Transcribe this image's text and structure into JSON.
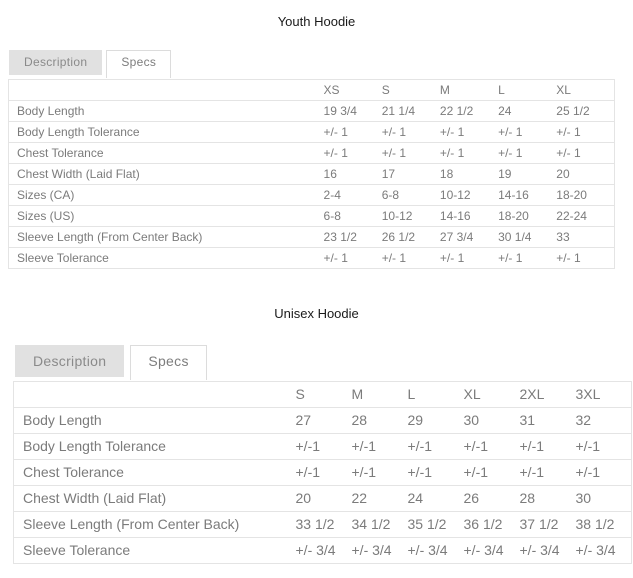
{
  "sections": [
    {
      "title": "Youth Hoodie",
      "tabs": [
        {
          "label": "Description",
          "active": false
        },
        {
          "label": "Specs",
          "active": true
        }
      ],
      "table": {
        "columns": [
          "XS",
          "S",
          "M",
          "L",
          "XL"
        ],
        "rows": [
          {
            "label": "Body Length",
            "values": [
              "19 3/4",
              "21 1/4",
              "22 1/2",
              "24",
              "25 1/2"
            ]
          },
          {
            "label": "Body Length Tolerance",
            "values": [
              "+/- 1",
              "+/- 1",
              "+/- 1",
              "+/- 1",
              "+/- 1"
            ]
          },
          {
            "label": "Chest Tolerance",
            "values": [
              "+/- 1",
              "+/- 1",
              "+/- 1",
              "+/- 1",
              "+/- 1"
            ]
          },
          {
            "label": "Chest Width (Laid Flat)",
            "values": [
              "16",
              "17",
              "18",
              "19",
              "20"
            ]
          },
          {
            "label": "Sizes (CA)",
            "values": [
              "2-4",
              "6-8",
              "10-12",
              "14-16",
              "18-20"
            ]
          },
          {
            "label": "Sizes (US)",
            "values": [
              "6-8",
              "10-12",
              "14-16",
              "18-20",
              "22-24"
            ]
          },
          {
            "label": "Sleeve Length (From Center Back)",
            "values": [
              "23 1/2",
              "26 1/2",
              "27 3/4",
              "30 1/4",
              "33"
            ]
          },
          {
            "label": "Sleeve Tolerance",
            "values": [
              "+/- 1",
              "+/- 1",
              "+/- 1",
              "+/- 1",
              "+/- 1"
            ]
          }
        ]
      }
    },
    {
      "title": "Unisex Hoodie",
      "tabs": [
        {
          "label": "Description",
          "active": false
        },
        {
          "label": "Specs",
          "active": true
        }
      ],
      "table": {
        "columns": [
          "S",
          "M",
          "L",
          "XL",
          "2XL",
          "3XL"
        ],
        "rows": [
          {
            "label": "Body Length",
            "values": [
              "27",
              "28",
              "29",
              "30",
              "31",
              "32"
            ]
          },
          {
            "label": "Body Length Tolerance",
            "values": [
              "+/-1",
              "+/-1",
              "+/-1",
              "+/-1",
              "+/-1",
              "+/-1"
            ]
          },
          {
            "label": "Chest Tolerance",
            "values": [
              "+/-1",
              "+/-1",
              "+/-1",
              "+/-1",
              "+/-1",
              "+/-1"
            ]
          },
          {
            "label": "Chest Width (Laid Flat)",
            "values": [
              "20",
              "22",
              "24",
              "26",
              "28",
              "30"
            ]
          },
          {
            "label": "Sleeve Length (From Center Back)",
            "values": [
              "33 1/2",
              "34 1/2",
              "35 1/2",
              "36 1/2",
              "37 1/2",
              "38 1/2"
            ]
          },
          {
            "label": "Sleeve Tolerance",
            "values": [
              "+/- 3/4",
              "+/- 3/4",
              "+/- 3/4",
              "+/- 3/4",
              "+/- 3/4",
              "+/- 3/4"
            ]
          }
        ]
      }
    }
  ],
  "colors": {
    "title_text": "#1a1a1a",
    "table_text": "#7b7b7b",
    "border": "#e4e4e4",
    "tab_inactive_bg": "#e1e1e1",
    "tab_active_bg": "#ffffff"
  }
}
